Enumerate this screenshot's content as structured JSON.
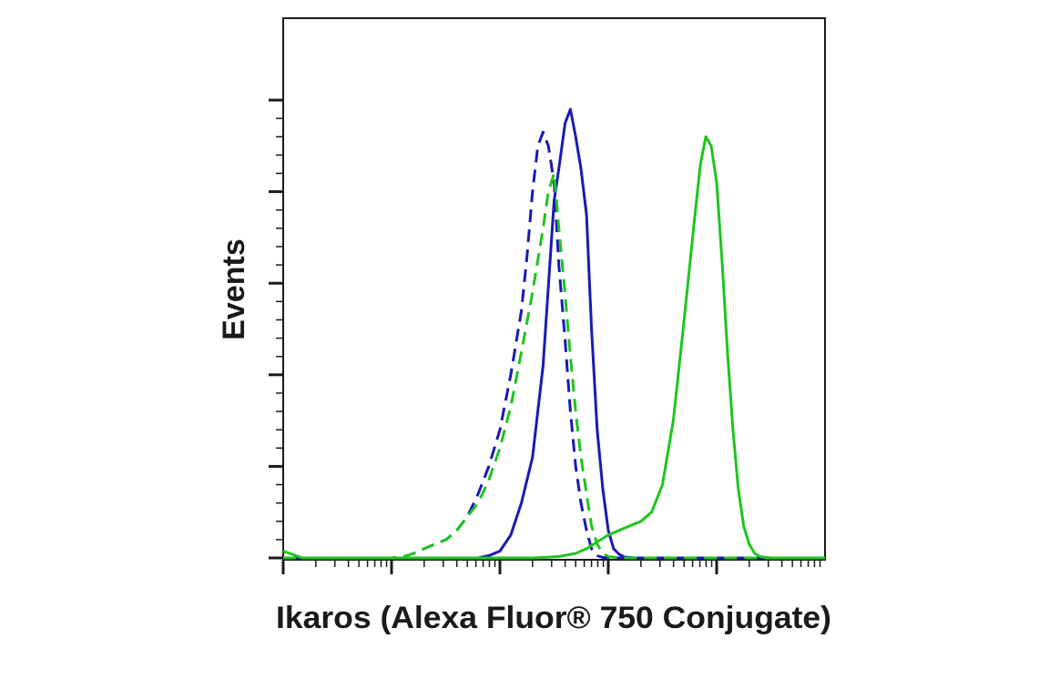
{
  "chart_data": {
    "type": "line",
    "title": "",
    "xlabel": "Ikaros (Alexa Fluor® 750 Conjugate)",
    "ylabel": "Events",
    "x_scale": "log",
    "xlim": [
      0.1,
      10000
    ],
    "ylim": [
      0,
      100
    ],
    "grid": false,
    "legend": "none",
    "series": [
      {
        "color": "#1a1ab4",
        "dash": false,
        "x": [
          0.1,
          5,
          6.3,
          7.9,
          10,
          12.6,
          15.8,
          20,
          25,
          31.6,
          35,
          40,
          44.7,
          50,
          56,
          63,
          70,
          79,
          89,
          100,
          112,
          126,
          141,
          158,
          178,
          200,
          251,
          316,
          10000
        ],
        "y": [
          0,
          0,
          0,
          0.5,
          1.5,
          5,
          12,
          22,
          42,
          78,
          85,
          95,
          98,
          92,
          85,
          75,
          50,
          28,
          15,
          6,
          2,
          0.8,
          0.2,
          0.1,
          0,
          0,
          0,
          0,
          0
        ]
      },
      {
        "color": "#1a1ab4",
        "dash": true,
        "x": [
          0.1,
          0.8,
          1,
          1.3,
          1.6,
          2,
          2.5,
          3.2,
          4,
          5,
          6.3,
          7.9,
          10,
          12.6,
          15.8,
          17.8,
          20,
          22.4,
          25,
          28,
          31.6,
          35,
          39.8,
          44.7,
          50,
          56,
          63,
          70,
          79,
          89,
          100,
          10000
        ],
        "y": [
          0,
          0,
          0,
          0.3,
          1,
          2,
          3,
          4,
          6,
          9,
          14,
          20,
          28,
          40,
          54,
          66,
          80,
          90,
          93,
          90,
          82,
          64,
          48,
          32,
          20,
          12,
          6,
          2,
          0.5,
          0.1,
          0,
          0
        ]
      },
      {
        "color": "#1fc41f",
        "dash": true,
        "x": [
          0.1,
          0.8,
          1,
          1.3,
          1.6,
          2,
          2.5,
          3.2,
          4,
          5,
          6.3,
          7.9,
          10,
          12.6,
          15.8,
          20,
          25,
          28,
          31.6,
          35,
          39.8,
          44.7,
          50,
          56,
          63,
          70,
          79,
          89,
          100,
          126,
          10000
        ],
        "y": [
          0,
          0,
          0,
          0.3,
          1,
          2,
          3,
          4,
          6,
          9,
          12,
          17,
          24,
          33,
          45,
          58,
          72,
          80,
          84,
          72,
          58,
          44,
          32,
          22,
          14,
          7,
          3,
          1,
          0.3,
          0,
          0
        ]
      },
      {
        "color": "#1fc41f",
        "dash": false,
        "x": [
          0.1,
          0.15,
          20,
          35,
          50,
          63,
          79,
          100,
          126,
          158,
          200,
          251,
          316,
          398,
          501,
          631,
          708,
          794,
          891,
          1000,
          1122,
          1259,
          1413,
          1585,
          1778,
          1995,
          2239,
          2512,
          3162,
          10000
        ],
        "y": [
          1.5,
          0,
          0,
          0.3,
          1,
          2,
          3.5,
          5,
          6,
          7,
          8,
          10,
          16,
          30,
          52,
          75,
          86,
          92,
          90,
          82,
          65,
          45,
          28,
          15,
          7,
          3,
          1,
          0.3,
          0,
          0
        ]
      }
    ]
  }
}
